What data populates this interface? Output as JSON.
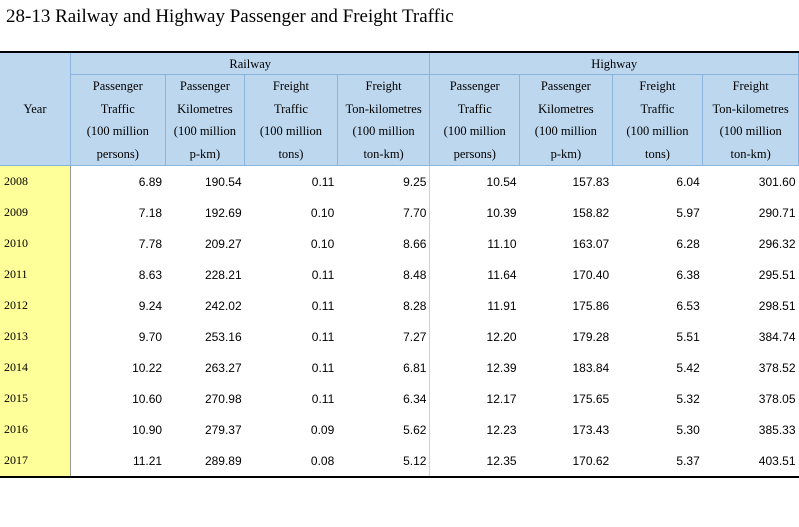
{
  "title": "28-13  Railway and Highway Passenger and Freight Traffic",
  "groups": {
    "railway": "Railway",
    "highway": "Highway"
  },
  "year_header": "Year",
  "column_headers": [
    [
      "Passenger",
      "Traffic",
      "(100 million",
      "persons)"
    ],
    [
      "Passenger",
      "Kilometres",
      "(100 million",
      "p-km)"
    ],
    [
      "Freight",
      "Traffic",
      "(100 million",
      "tons)"
    ],
    [
      "Freight",
      "Ton-kilometres",
      "(100 million",
      "ton-km)"
    ]
  ],
  "rows": [
    {
      "year": "2008",
      "rail": [
        "6.89",
        "190.54",
        "0.11",
        "9.25"
      ],
      "highway": [
        "10.54",
        "157.83",
        "6.04",
        "301.60"
      ]
    },
    {
      "year": "2009",
      "rail": [
        "7.18",
        "192.69",
        "0.10",
        "7.70"
      ],
      "highway": [
        "10.39",
        "158.82",
        "5.97",
        "290.71"
      ]
    },
    {
      "year": "2010",
      "rail": [
        "7.78",
        "209.27",
        "0.10",
        "8.66"
      ],
      "highway": [
        "11.10",
        "163.07",
        "6.28",
        "296.32"
      ]
    },
    {
      "year": "2011",
      "rail": [
        "8.63",
        "228.21",
        "0.11",
        "8.48"
      ],
      "highway": [
        "11.64",
        "170.40",
        "6.38",
        "295.51"
      ]
    },
    {
      "year": "2012",
      "rail": [
        "9.24",
        "242.02",
        "0.11",
        "8.28"
      ],
      "highway": [
        "11.91",
        "175.86",
        "6.53",
        "298.51"
      ]
    },
    {
      "year": "2013",
      "rail": [
        "9.70",
        "253.16",
        "0.11",
        "7.27"
      ],
      "highway": [
        "12.20",
        "179.28",
        "5.51",
        "384.74"
      ]
    },
    {
      "year": "2014",
      "rail": [
        "10.22",
        "263.27",
        "0.11",
        "6.81"
      ],
      "highway": [
        "12.39",
        "183.84",
        "5.42",
        "378.52"
      ]
    },
    {
      "year": "2015",
      "rail": [
        "10.60",
        "270.98",
        "0.11",
        "6.34"
      ],
      "highway": [
        "12.17",
        "175.65",
        "5.32",
        "378.05"
      ]
    },
    {
      "year": "2016",
      "rail": [
        "10.90",
        "279.37",
        "0.09",
        "5.62"
      ],
      "highway": [
        "12.23",
        "173.43",
        "5.30",
        "385.33"
      ]
    },
    {
      "year": "2017",
      "rail": [
        "11.21",
        "289.89",
        "0.08",
        "5.12"
      ],
      "highway": [
        "12.35",
        "170.62",
        "5.37",
        "403.51"
      ]
    }
  ],
  "colors": {
    "header_bg": "#bdd7ee",
    "year_col_bg": "#ffff99"
  }
}
